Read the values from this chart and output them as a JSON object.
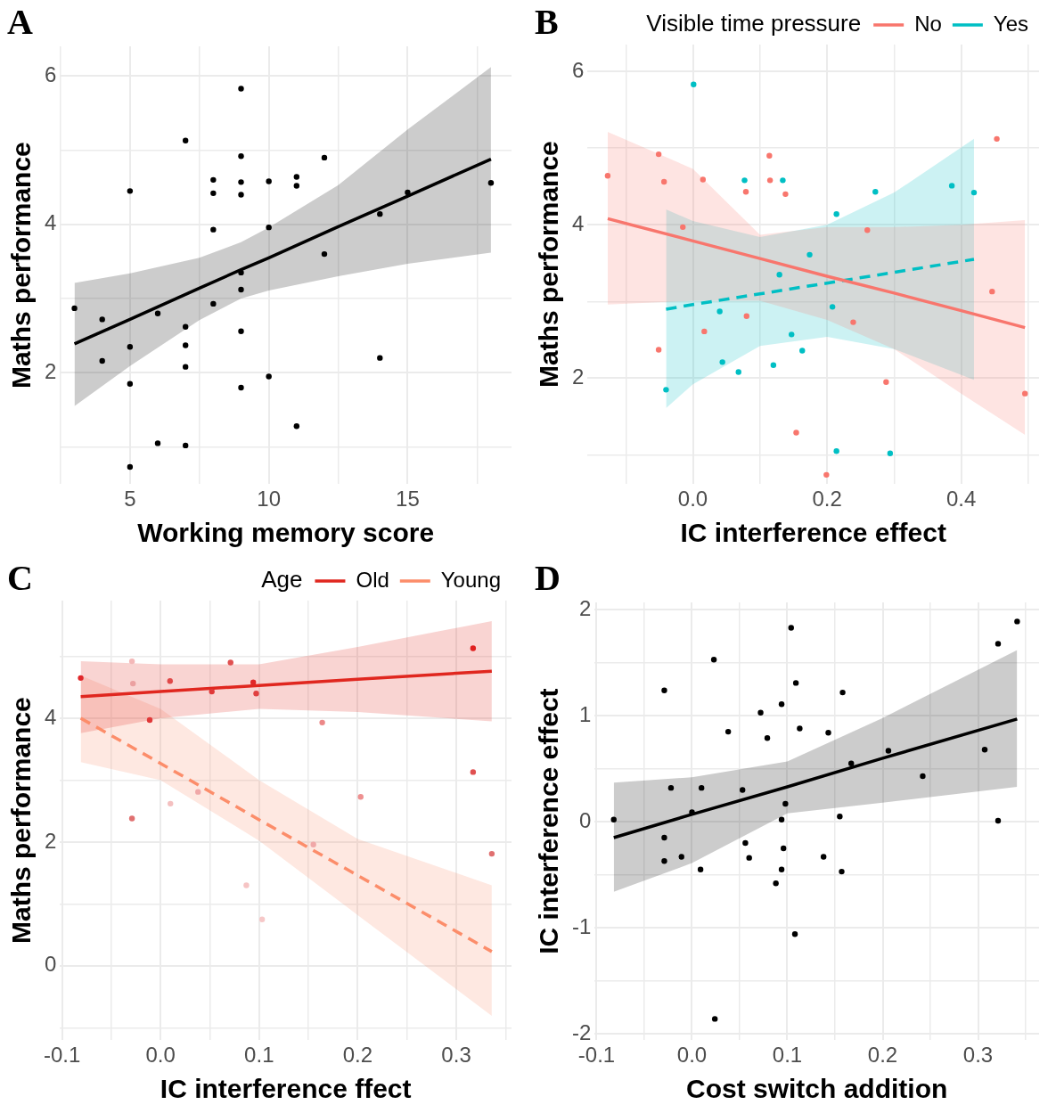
{
  "chart_data": [
    {
      "type": "scatter",
      "title": "A",
      "xlabel": "Working memory score",
      "ylabel": "Maths performance",
      "xlim": [
        2.48,
        18.74
      ],
      "ylim": [
        0.5,
        6.4
      ],
      "xticks": [
        {
          "value": 2.5,
          "label": null
        },
        5,
        {
          "value": 7.5,
          "label": null
        },
        10,
        {
          "value": 12.5,
          "label": null
        },
        15,
        {
          "value": 17.5,
          "label": null
        }
      ],
      "yticks": [
        {
          "value": 1,
          "label": null
        },
        2,
        {
          "value": 3,
          "label": null
        },
        4,
        {
          "value": 5,
          "label": null
        },
        6
      ],
      "grid": true,
      "series": [
        {
          "type": "scatter",
          "marker": "circle",
          "color": "#000000",
          "x": [
            3,
            4,
            4,
            5,
            5,
            5,
            5,
            6,
            6,
            7,
            7,
            7,
            7,
            7,
            8,
            8,
            8,
            8,
            9,
            9,
            9,
            9,
            9,
            9,
            9,
            9,
            10,
            10,
            10,
            11,
            11,
            11,
            12,
            12,
            14,
            14,
            15,
            18
          ],
          "values": [
            2.87,
            2.72,
            2.16,
            4.45,
            2.35,
            1.85,
            0.73,
            2.8,
            1.05,
            5.13,
            2.62,
            2.37,
            2.08,
            1.02,
            4.6,
            4.42,
            3.93,
            2.93,
            5.83,
            4.92,
            4.57,
            4.4,
            3.35,
            3.12,
            2.56,
            1.8,
            4.58,
            3.96,
            1.95,
            4.64,
            4.52,
            1.28,
            4.9,
            3.6,
            4.14,
            2.2,
            4.43,
            4.56
          ]
        },
        {
          "type": "line",
          "color": "#000000",
          "x": [
            3,
            5,
            7.5,
            9,
            10,
            12.5,
            15,
            18
          ],
          "values": [
            2.39,
            2.72,
            3.14,
            3.39,
            3.55,
            3.97,
            4.38,
            4.88
          ],
          "lower": [
            1.55,
            2.09,
            2.71,
            3.0,
            3.11,
            3.3,
            3.47,
            3.62
          ],
          "upper": [
            3.21,
            3.34,
            3.55,
            3.76,
            3.96,
            4.53,
            5.28,
            6.12
          ]
        }
      ]
    },
    {
      "type": "scatter",
      "title": "B",
      "xlabel": "IC interference effect",
      "ylabel": "Maths performance",
      "legend": "top",
      "legend_title": "Visible time pressure",
      "xlim": [
        -0.157,
        0.516
      ],
      "ylim": [
        0.62,
        6.35
      ],
      "xticks": [
        {
          "value": -0.1,
          "label": null
        },
        {
          "value": 0,
          "label": "0.0"
        },
        {
          "value": 0.1,
          "label": null
        },
        0.2,
        {
          "value": 0.3,
          "label": null
        },
        0.4,
        {
          "value": 0.5,
          "label": null
        }
      ],
      "yticks": [
        {
          "value": 1,
          "label": null
        },
        2,
        {
          "value": 3,
          "label": null
        },
        4,
        {
          "value": 5,
          "label": null
        },
        6
      ],
      "grid": true,
      "series": [
        {
          "type": "scatter",
          "marker": "circle",
          "color": "#f8766d",
          "x": [
            -0.127,
            -0.051,
            -0.043,
            0.015,
            -0.015,
            0.114,
            0.115,
            0.079,
            0.138,
            0.453,
            0.26,
            0.446,
            0.08,
            0.017,
            -0.051,
            0.239,
            0.288,
            0.495,
            0.154,
            0.199
          ],
          "values": [
            4.64,
            4.92,
            4.56,
            4.59,
            3.97,
            4.9,
            4.58,
            4.43,
            4.4,
            5.12,
            3.93,
            3.13,
            2.81,
            2.61,
            2.37,
            2.73,
            1.95,
            1.8,
            1.29,
            0.74
          ]
        },
        {
          "type": "scatter",
          "marker": "circle",
          "color": "#00bfc4",
          "x": [
            0.001,
            0.077,
            0.134,
            0.272,
            0.386,
            0.419,
            0.214,
            0.174,
            0.129,
            0.04,
            0.208,
            0.147,
            0.163,
            0.044,
            0.068,
            0.12,
            -0.04,
            0.214,
            0.294
          ],
          "values": [
            5.83,
            4.58,
            4.58,
            4.43,
            4.51,
            4.42,
            4.14,
            3.61,
            3.35,
            2.87,
            2.93,
            2.57,
            2.36,
            2.21,
            2.08,
            2.17,
            1.85,
            1.05,
            1.02
          ]
        },
        {
          "type": "line",
          "name": "No",
          "color": "#f8766d",
          "line_style": "solid",
          "x": [
            -0.127,
            0,
            0.1,
            0.2,
            0.3,
            0.4,
            0.495
          ],
          "values": [
            4.08,
            3.79,
            3.56,
            3.33,
            3.11,
            2.88,
            2.66
          ],
          "lower": [
            2.96,
            3.01,
            3.01,
            2.76,
            2.38,
            1.8,
            1.26
          ],
          "upper": [
            5.21,
            4.73,
            3.87,
            3.97,
            3.97,
            4.0,
            4.06
          ]
        },
        {
          "type": "line",
          "name": "Yes",
          "color": "#00bfc4",
          "line_style": "dashed",
          "x": [
            -0.04,
            0,
            0.1,
            0.2,
            0.3,
            0.419
          ],
          "values": [
            2.9,
            2.96,
            3.1,
            3.24,
            3.38,
            3.55
          ],
          "lower": [
            1.61,
            1.92,
            2.42,
            2.54,
            2.38,
            1.98
          ],
          "upper": [
            4.2,
            4.05,
            3.84,
            4.0,
            4.42,
            5.12
          ]
        }
      ]
    },
    {
      "type": "scatter",
      "title": "C",
      "xlabel": "IC interference ffect",
      "ylabel": "Maths performance",
      "legend": "top",
      "legend_title": "Age",
      "xlim": [
        -0.102,
        0.356
      ],
      "ylim": [
        -1.2,
        5.9
      ],
      "xticks": [
        -0.1,
        {
          "value": -0.05,
          "label": null
        },
        {
          "value": 0,
          "label": "0.0"
        },
        {
          "value": 0.05,
          "label": null
        },
        0.1,
        {
          "value": 0.15,
          "label": null
        },
        0.2,
        {
          "value": 0.25,
          "label": null
        },
        0.3,
        {
          "value": 0.35,
          "label": null
        }
      ],
      "yticks": [
        {
          "value": -1,
          "label": null
        },
        0,
        {
          "value": 1,
          "label": null
        },
        2,
        {
          "value": 3,
          "label": null
        },
        4,
        {
          "value": 5,
          "label": null
        }
      ],
      "grid": true,
      "series": [
        {
          "type": "scatter",
          "marker": "circle",
          "x": [
            -0.081,
            -0.029,
            -0.028,
            0.0096,
            0.071,
            0.052,
            0.094,
            0.097,
            -0.011,
            0.164,
            0.317,
            0.317,
            -0.029,
            0.01,
            0.038,
            0.203,
            0.155,
            0.087,
            0.103,
            0.336
          ],
          "values": [
            4.65,
            4.92,
            4.56,
            4.6,
            4.9,
            4.43,
            4.58,
            4.4,
            3.97,
            3.93,
            5.13,
            3.13,
            2.38,
            2.62,
            2.81,
            2.73,
            1.96,
            1.3,
            0.75,
            1.81
          ],
          "colors": [
            "#e0272a",
            "#f4b8b8",
            "#eba0a0",
            "#e04848",
            "#e05050",
            "#e03838",
            "#e02828",
            "#e04040",
            "#e03838",
            "#ec8888",
            "#e02020",
            "#e05050",
            "#e07070",
            "#f4c0c0",
            "#f0a8a8",
            "#ee9090",
            "#f0a8a8",
            "#f6c4c4",
            "#f6c8c8",
            "#e07070"
          ]
        },
        {
          "type": "line",
          "name": "Old",
          "color": "#e0271f",
          "line_style": "solid",
          "x": [
            -0.081,
            0,
            0.1,
            0.2,
            0.336
          ],
          "values": [
            4.35,
            4.43,
            4.53,
            4.63,
            4.76
          ],
          "lower": [
            3.76,
            4.0,
            4.15,
            4.1,
            3.95
          ],
          "upper": [
            4.92,
            4.87,
            4.87,
            5.15,
            5.57
          ]
        },
        {
          "type": "line",
          "name": "Young",
          "color": "#fc8d6a",
          "line_style": "dashed",
          "x": [
            -0.081,
            0,
            0.1,
            0.2,
            0.336
          ],
          "values": [
            4.0,
            3.27,
            2.36,
            1.46,
            0.23
          ],
          "lower": [
            3.29,
            3.0,
            2.02,
            0.82,
            -0.81
          ],
          "upper": [
            4.69,
            4.15,
            3.0,
            2.05,
            1.3
          ]
        }
      ]
    },
    {
      "type": "scatter",
      "title": "D",
      "xlabel": "Cost switch addition",
      "ylabel": "IC interference effect",
      "xlim": [
        -0.102,
        0.364
      ],
      "ylim": [
        -2.06,
        2.07
      ],
      "xticks": [
        -0.1,
        {
          "value": -0.05,
          "label": null
        },
        {
          "value": 0,
          "label": "0.0"
        },
        {
          "value": 0.05,
          "label": null
        },
        0.1,
        {
          "value": 0.15,
          "label": null
        },
        0.2,
        {
          "value": 0.25,
          "label": null
        },
        0.3,
        {
          "value": 0.35,
          "label": null
        }
      ],
      "yticks": [
        -2,
        {
          "value": -1.5,
          "label": null
        },
        -1,
        {
          "value": -0.5,
          "label": null
        },
        0,
        {
          "value": 0.5,
          "label": null
        },
        1,
        {
          "value": 1.5,
          "label": null
        },
        2
      ],
      "grid": true,
      "series": [
        {
          "type": "scatter",
          "marker": "circle",
          "color": "#000000",
          "x": [
            -0.082,
            -0.029,
            0.023,
            0.104,
            0.341,
            0.321,
            0.109,
            0.158,
            0.094,
            0.072,
            0.038,
            0.113,
            0.143,
            0.079,
            0.206,
            0.307,
            0.167,
            0.242,
            -0.022,
            0.01,
            0.053,
            0,
            0.098,
            0.094,
            0.155,
            0.321,
            -0.029,
            0.056,
            0.096,
            -0.011,
            0.06,
            0.138,
            -0.029,
            0.009,
            0.094,
            0.157,
            0.088,
            0.108,
            0.024
          ],
          "values": [
            0.02,
            1.24,
            1.53,
            1.83,
            1.89,
            1.68,
            1.31,
            1.22,
            1.11,
            1.03,
            0.85,
            0.88,
            0.84,
            0.79,
            0.67,
            0.68,
            0.55,
            0.43,
            0.32,
            0.32,
            0.3,
            0.09,
            0.17,
            0.02,
            0.05,
            0.01,
            -0.15,
            -0.2,
            -0.25,
            -0.33,
            -0.34,
            -0.33,
            -0.37,
            -0.45,
            -0.45,
            -0.47,
            -0.58,
            -1.06,
            -1.86
          ]
        },
        {
          "type": "line",
          "color": "#000000",
          "x": [
            -0.082,
            0,
            0.1,
            0.2,
            0.341
          ],
          "values": [
            -0.15,
            0.07,
            0.33,
            0.6,
            0.97
          ],
          "lower": [
            -0.66,
            -0.39,
            0.08,
            0.18,
            0.33
          ],
          "upper": [
            0.37,
            0.42,
            0.57,
            0.98,
            1.62
          ]
        }
      ]
    }
  ]
}
